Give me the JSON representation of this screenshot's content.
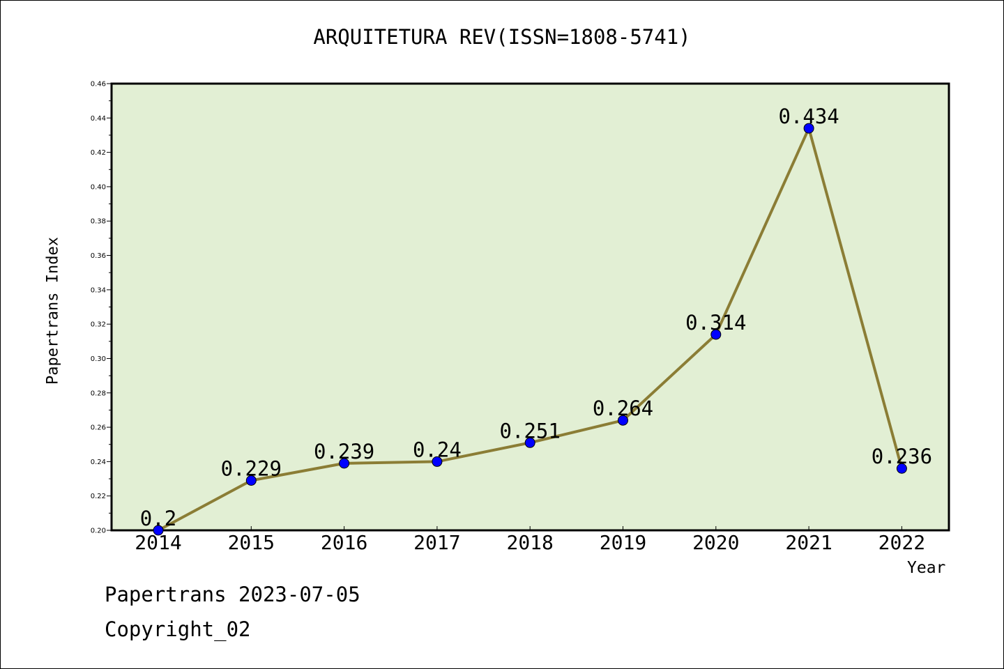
{
  "page": {
    "title": "ARQUITETURA REV(ISSN=1808-5741)",
    "footer_date": "Papertrans 2023-07-05",
    "footer_copyright": "Copyright_02"
  },
  "chart_data": {
    "type": "line",
    "title": "ARQUITETURA REV(ISSN=1808-5741)",
    "xlabel": "Year",
    "ylabel": "Papertrans Index",
    "categories": [
      "2014",
      "2015",
      "2016",
      "2017",
      "2018",
      "2019",
      "2020",
      "2021",
      "2022"
    ],
    "series": [
      {
        "values": [
          0.2,
          0.229,
          0.239,
          0.24,
          0.251,
          0.264,
          0.314,
          0.434,
          0.236
        ],
        "labels": [
          "0.2",
          "0.229",
          "0.239",
          "0.24",
          "0.251",
          "0.264",
          "0.314",
          "0.434",
          "0.236"
        ]
      }
    ],
    "ylim": [
      0.2,
      0.46
    ],
    "yticks": [
      "0.20",
      "0.22",
      "0.24",
      "0.26",
      "0.28",
      "0.30",
      "0.32",
      "0.34",
      "0.36",
      "0.38",
      "0.40",
      "0.42",
      "0.44",
      "0.46"
    ],
    "grid": false,
    "colors": {
      "plot_background": "#e2efd4",
      "line": "#8b7d35",
      "marker": "#0000ff"
    }
  }
}
